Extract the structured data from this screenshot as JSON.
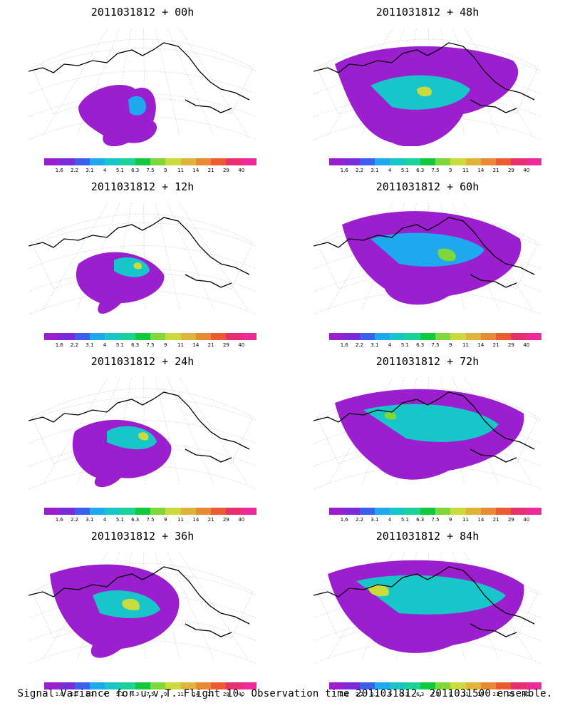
{
  "caption": "Signal Variance for u,v,T. Flight 10. Observation time 2011031812. 2011031500 ensemble.",
  "colorbar": {
    "colors": [
      "#9b1fcf",
      "#7a2bd8",
      "#3d5ff0",
      "#1ea8ee",
      "#17c6c8",
      "#1bd29a",
      "#12c93d",
      "#7fd83a",
      "#c9dc3c",
      "#e0b43a",
      "#e88a33",
      "#ec5a2f",
      "#e73070",
      "#ee2a9a"
    ],
    "labels": [
      "1.6",
      "2.2",
      "3.1",
      "4",
      "5.1",
      "6.3",
      "7.5",
      "9",
      "11",
      "14",
      "21",
      "29",
      "40"
    ]
  },
  "panels": [
    {
      "title": "2011031812 + 00h"
    },
    {
      "title": "2011031812 + 48h"
    },
    {
      "title": "2011031812 + 12h"
    },
    {
      "title": "2011031812 + 60h"
    },
    {
      "title": "2011031812 + 24h"
    },
    {
      "title": "2011031812 + 72h"
    },
    {
      "title": "2011031812 + 36h"
    },
    {
      "title": "2011031812 + 84h"
    }
  ]
}
